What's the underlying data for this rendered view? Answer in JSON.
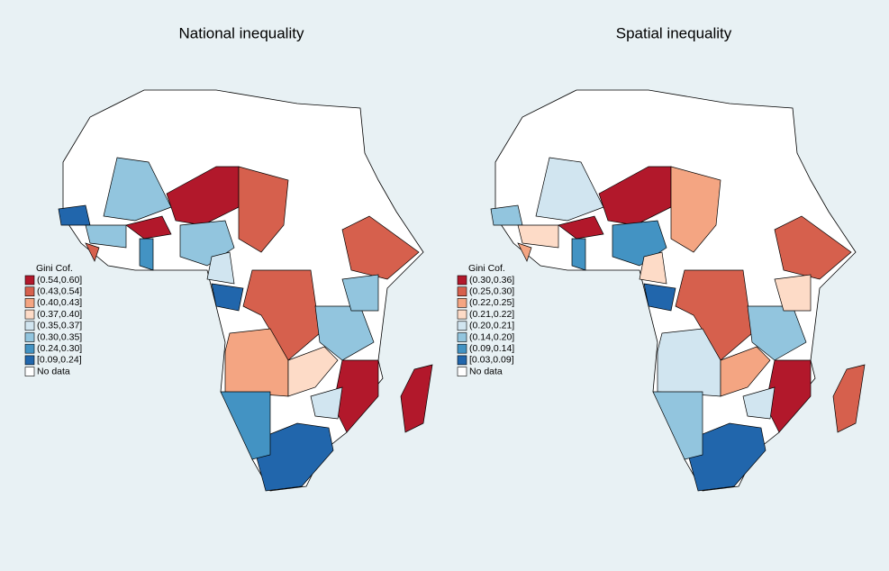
{
  "maps": [
    {
      "title": "National inequality",
      "legend": {
        "title": "Gini Cof.",
        "classes": [
          {
            "label": "(0.54,0.60]",
            "color": "#b2182b"
          },
          {
            "label": "(0.43,0.54]",
            "color": "#d6604d"
          },
          {
            "label": "(0.40,0.43]",
            "color": "#f4a582"
          },
          {
            "label": "(0.37,0.40]",
            "color": "#fddbc7"
          },
          {
            "label": "(0.35,0.37]",
            "color": "#d1e5f0"
          },
          {
            "label": "(0.30,0.35]",
            "color": "#92c5de"
          },
          {
            "label": "(0.24,0.30]",
            "color": "#4393c3"
          },
          {
            "label": "[0.09,0.24]",
            "color": "#2166ac"
          }
        ],
        "no_data": {
          "label": "No data",
          "color": "#ffffff"
        }
      }
    },
    {
      "title": "Spatial inequality",
      "legend": {
        "title": "Gini Cof.",
        "classes": [
          {
            "label": "(0.30,0.36]",
            "color": "#b2182b"
          },
          {
            "label": "(0.25,0.30]",
            "color": "#d6604d"
          },
          {
            "label": "(0.22,0.25]",
            "color": "#f4a582"
          },
          {
            "label": "(0.21,0.22]",
            "color": "#fddbc7"
          },
          {
            "label": "(0.20,0.21]",
            "color": "#d1e5f0"
          },
          {
            "label": "(0.14,0.20]",
            "color": "#92c5de"
          },
          {
            "label": "(0.09,0.14]",
            "color": "#4393c3"
          },
          {
            "label": "[0.03,0.09]",
            "color": "#2166ac"
          }
        ],
        "no_data": {
          "label": "No data",
          "color": "#ffffff"
        }
      }
    }
  ]
}
